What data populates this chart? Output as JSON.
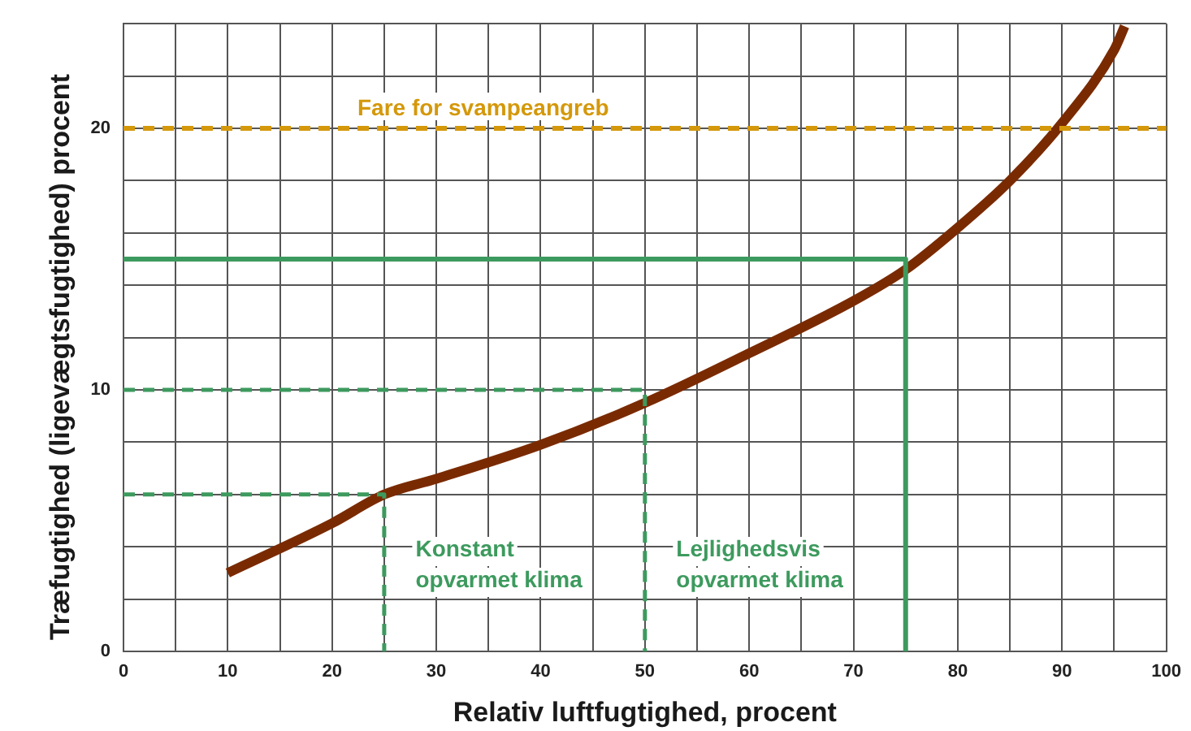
{
  "chart_data": {
    "type": "line",
    "xlabel": "Relativ luftfugtighed, procent",
    "ylabel": "Træfugtighed (ligevægtsfugtighed) procent",
    "xlim": [
      0,
      100
    ],
    "ylim": [
      0,
      24
    ],
    "xticks": [
      0,
      {
        "value": 5,
        "label": null
      },
      10,
      {
        "value": 15,
        "label": null
      },
      20,
      {
        "value": 25,
        "label": null
      },
      30,
      {
        "value": 35,
        "label": null
      },
      40,
      {
        "value": 45,
        "label": null
      },
      50,
      {
        "value": 55,
        "label": null
      },
      60,
      {
        "value": 65,
        "label": null
      },
      70,
      {
        "value": 75,
        "label": null
      },
      80,
      {
        "value": 85,
        "label": null
      },
      90,
      {
        "value": 95,
        "label": null
      },
      100
    ],
    "yticks": [
      0,
      {
        "value": 2,
        "label": null
      },
      {
        "value": 4,
        "label": null
      },
      {
        "value": 6,
        "label": null
      },
      {
        "value": 8,
        "label": null
      },
      10,
      {
        "value": 12,
        "label": null
      },
      {
        "value": 14,
        "label": null
      },
      {
        "value": 16,
        "label": null
      },
      {
        "value": 18,
        "label": null
      },
      20,
      {
        "value": 22,
        "label": null
      },
      {
        "value": 24,
        "label": null
      }
    ],
    "grid": true,
    "legend": false,
    "marker": "none",
    "series": [
      {
        "color": "#3d9a5e",
        "line_style": "solid",
        "x": [
          0,
          75,
          75
        ],
        "values": [
          15,
          15,
          0
        ]
      },
      {
        "color": "#3d9a5e",
        "line_style": "dashed",
        "x": [
          0,
          50,
          50
        ],
        "values": [
          10,
          10,
          0
        ]
      },
      {
        "color": "#3d9a5e",
        "line_style": "dashed",
        "x": [
          0,
          25,
          25
        ],
        "values": [
          6,
          6,
          0
        ]
      },
      {
        "color": "#7a2a00",
        "line_style": "solid",
        "x": [
          10,
          20,
          25,
          30,
          40,
          50,
          60,
          70,
          75,
          80,
          85,
          90,
          95,
          96
        ],
        "values": [
          3.0,
          4.9,
          6.0,
          6.6,
          7.9,
          9.5,
          11.4,
          13.4,
          14.6,
          16.2,
          18.0,
          20.2,
          23.0,
          23.9
        ]
      }
    ],
    "ref_lines": [
      {
        "axis": "y",
        "value": 20,
        "label": "Fare for svampeangreb",
        "color": "#d4980a",
        "line_style": "dashed"
      }
    ],
    "annotations": [
      "Konstant opvarmet klima",
      "Lejlighedsvis opvarmet klima"
    ]
  }
}
